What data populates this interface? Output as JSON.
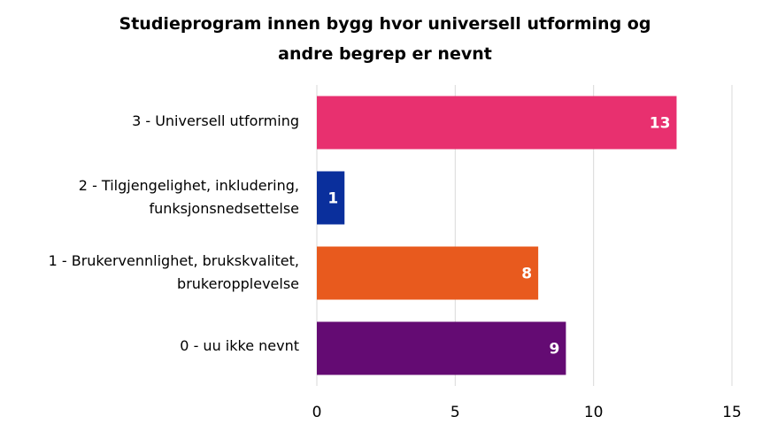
{
  "chart_data": {
    "type": "bar",
    "orientation": "horizontal",
    "title_lines": [
      "Studieprogram innen bygg hvor universell utforming og",
      "andre begrep er nevnt"
    ],
    "categories": [
      [
        "3 - Universell utforming"
      ],
      [
        "2 - Tilgjengelighet, inkludering,",
        "funksjonsnedsettelse"
      ],
      [
        "1 - Brukervennlighet, brukskvalitet,",
        "brukeropplevelse"
      ],
      [
        "0 - uu ikke nevnt"
      ]
    ],
    "values": [
      13,
      1,
      8,
      9
    ],
    "data_labels": [
      "13",
      "1",
      "8",
      "9"
    ],
    "colors": [
      "#e8306f",
      "#0a2f9c",
      "#e85a1e",
      "#640b73"
    ],
    "xlim": [
      0,
      15
    ],
    "xticks": [
      0,
      5,
      10,
      15
    ],
    "xtick_labels": [
      "0",
      "5",
      "10",
      "15"
    ],
    "grid": true,
    "xlabel": "",
    "ylabel": ""
  }
}
